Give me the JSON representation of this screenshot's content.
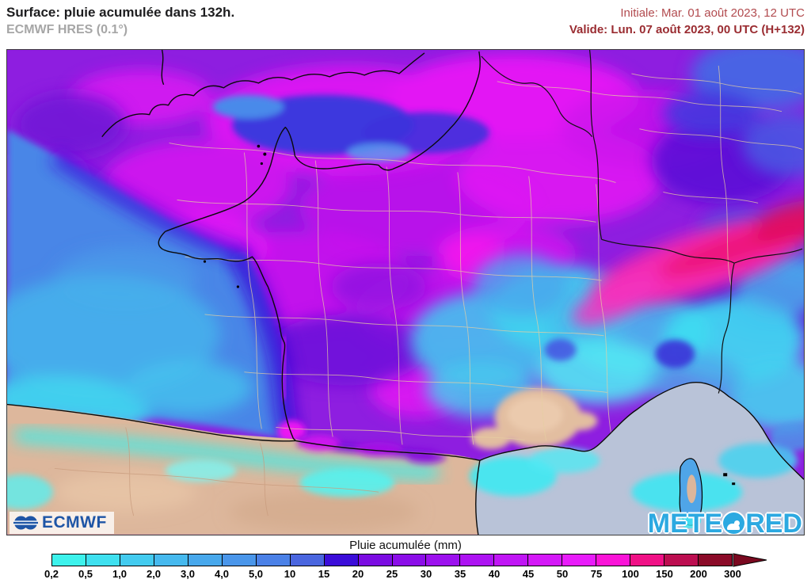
{
  "header": {
    "title": "Surface: pluie acumulée dans 132h.",
    "model": "ECMWF HRES (0.1°)",
    "initial": "Initiale: Mar. 01 août 2023, 12 UTC",
    "valid": "Valide: Lun. 07 août 2023, 00 UTC (H+132)",
    "initial_color": "#b24b4f",
    "valid_color": "#9a2c31"
  },
  "map": {
    "ecmwf_logo_text": "ECMWF",
    "meteored_prefix": "METE",
    "meteored_suffix": "RED",
    "brand_color": "#2CA9E1",
    "ecmwf_blue": "#1E55A6",
    "dry_land_color": "#DDB79C",
    "sea_no_rain_color": "#B9C3D8"
  },
  "legend": {
    "title": "Pluie acumulée (mm)",
    "unit": "mm",
    "ticks": [
      "0,2",
      "0,5",
      "1,0",
      "2,0",
      "3,0",
      "4,0",
      "5,0",
      "10",
      "15",
      "20",
      "25",
      "30",
      "35",
      "40",
      "45",
      "50",
      "75",
      "100",
      "150",
      "200",
      "300"
    ],
    "cell_colors": [
      "#3DF2EC",
      "#3FE0EF",
      "#43CBEF",
      "#46B9EE",
      "#48A8EC",
      "#4A96EA",
      "#4B81E7",
      "#4A66DF",
      "#3B0DD9",
      "#7B0CE2",
      "#8B0EE8",
      "#9C11EE",
      "#AD13F2",
      "#C016F5",
      "#D419F8",
      "#E81CFA",
      "#FA14D8",
      "#F01186",
      "#BC0E50",
      "#8B0B28"
    ],
    "arrow_color": "#7A0920"
  }
}
